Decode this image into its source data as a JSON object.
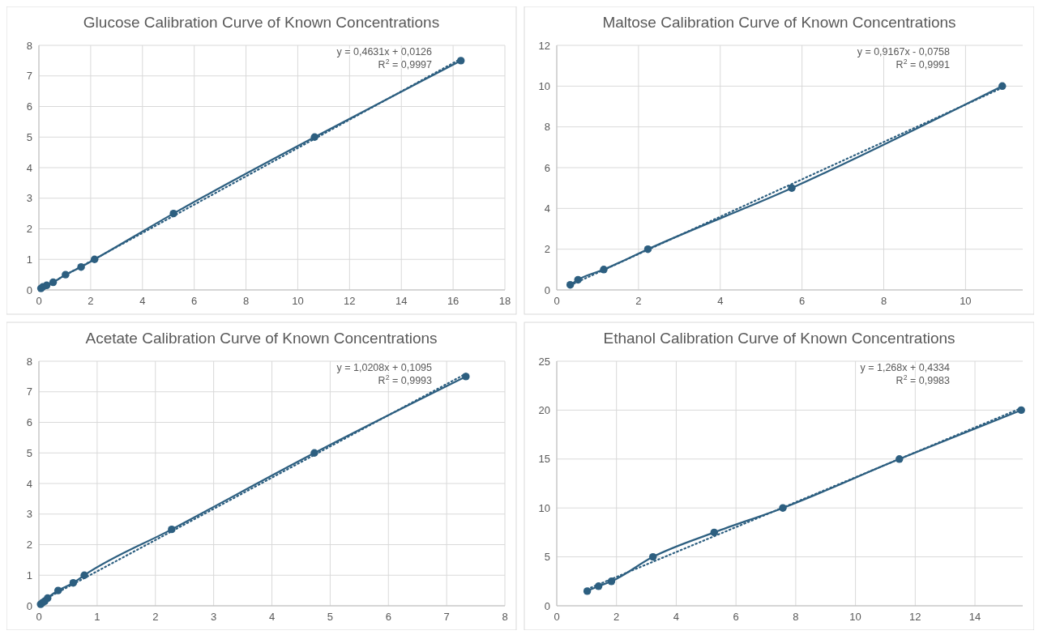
{
  "chart_data": [
    {
      "type": "line",
      "title": "Glucose Calibration Curve of Known Concentrations",
      "xlim": [
        0,
        18
      ],
      "xticks": [
        0,
        2,
        4,
        6,
        8,
        10,
        12,
        14,
        16,
        18
      ],
      "ylim": [
        0,
        8
      ],
      "yticks": [
        0,
        1,
        2,
        3,
        4,
        5,
        6,
        7,
        8
      ],
      "grid": true,
      "series": [
        {
          "color": "#2d5f80",
          "marker": "circle",
          "line_style": "solid",
          "x": [
            0.08,
            0.15,
            0.3,
            0.55,
            1.03,
            1.63,
            2.15,
            5.2,
            10.65,
            16.3
          ],
          "values": [
            0.05,
            0.1,
            0.15,
            0.25,
            0.5,
            0.75,
            1.0,
            2.5,
            5.0,
            7.5
          ]
        },
        {
          "color": "#2d5f80",
          "marker": "none",
          "line_style": "dotted",
          "x": [
            0.08,
            16.3
          ],
          "values": [
            0.05,
            7.56
          ]
        }
      ],
      "annotations": [
        "y = 0,4631x + 0,0126",
        "R$^{2}$ = 0,9997"
      ]
    },
    {
      "type": "line",
      "title": "Maltose Calibration Curve of Known Concentrations",
      "xlim": [
        0,
        11.4
      ],
      "xticks": [
        0,
        2,
        4,
        6,
        8,
        10
      ],
      "ylim": [
        0,
        12
      ],
      "yticks": [
        0,
        2,
        4,
        6,
        8,
        10,
        12
      ],
      "grid": true,
      "series": [
        {
          "color": "#2d5f80",
          "marker": "circle",
          "line_style": "solid",
          "x": [
            0.33,
            0.52,
            1.15,
            2.23,
            5.75,
            10.9
          ],
          "values": [
            0.25,
            0.5,
            1.0,
            2.0,
            5.0,
            10.0
          ]
        },
        {
          "color": "#2d5f80",
          "marker": "none",
          "line_style": "dotted",
          "x": [
            0.33,
            10.9
          ],
          "values": [
            0.23,
            9.92
          ]
        }
      ],
      "annotations": [
        "y = 0,9167x - 0,0758",
        "R$^{2}$ = 0,9991"
      ]
    },
    {
      "type": "line",
      "title": "Acetate Calibration Curve of Known Concentrations",
      "xlim": [
        0,
        8
      ],
      "xticks": [
        0,
        1,
        2,
        3,
        4,
        5,
        6,
        7,
        8
      ],
      "ylim": [
        0,
        8
      ],
      "yticks": [
        0,
        1,
        2,
        3,
        4,
        5,
        6,
        7,
        8
      ],
      "grid": true,
      "series": [
        {
          "color": "#2d5f80",
          "marker": "circle",
          "line_style": "solid",
          "x": [
            0.03,
            0.06,
            0.1,
            0.15,
            0.33,
            0.59,
            0.78,
            2.28,
            4.73,
            7.33
          ],
          "values": [
            0.05,
            0.1,
            0.15,
            0.25,
            0.5,
            0.75,
            1.0,
            2.5,
            5.0,
            7.5
          ]
        },
        {
          "color": "#2d5f80",
          "marker": "none",
          "line_style": "dotted",
          "x": [
            0.03,
            7.33
          ],
          "values": [
            0.14,
            7.59
          ]
        }
      ],
      "annotations": [
        "y = 1,0208x + 0,1095",
        "R$^{2}$ = 0,9993"
      ]
    },
    {
      "type": "line",
      "title": "Ethanol Calibration Curve of Known Concentrations",
      "xlim": [
        0,
        15.6
      ],
      "xticks": [
        0,
        2,
        4,
        6,
        8,
        10,
        12,
        14
      ],
      "ylim": [
        0,
        25
      ],
      "yticks": [
        0,
        5,
        10,
        15,
        20,
        25
      ],
      "grid": true,
      "series": [
        {
          "color": "#2d5f80",
          "marker": "circle",
          "line_style": "solid",
          "x": [
            1.02,
            1.4,
            1.83,
            3.22,
            5.27,
            7.57,
            11.47,
            15.55
          ],
          "values": [
            1.5,
            2.0,
            2.5,
            5.0,
            7.5,
            10.0,
            15.0,
            20.0
          ]
        },
        {
          "color": "#2d5f80",
          "marker": "none",
          "line_style": "dotted",
          "x": [
            1.02,
            15.55
          ],
          "values": [
            1.7,
            20.2
          ]
        }
      ],
      "annotations": [
        "y = 1,268x + 0,4334",
        "R$^{2}$ = 0,9983"
      ]
    }
  ]
}
